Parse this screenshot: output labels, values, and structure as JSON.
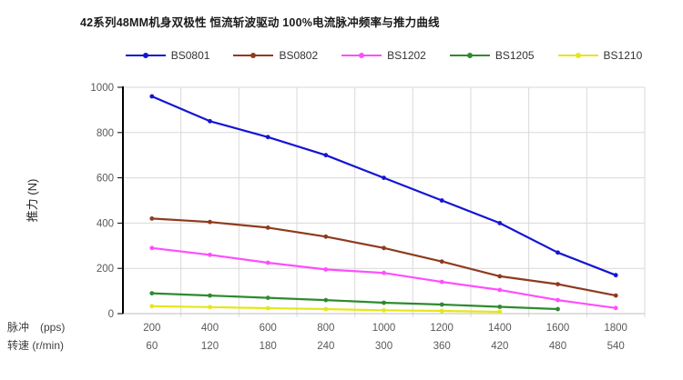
{
  "chart_data": {
    "type": "line",
    "title": "42系列48MM机身双极性 恒流斩波驱动 100%电流脉冲频率与推力曲线",
    "ylabel": "推力  (N)",
    "ylim": [
      0,
      1000
    ],
    "yticks": [
      0,
      200,
      400,
      600,
      800,
      1000
    ],
    "grid": true,
    "legend_position": "top",
    "x_rows": [
      {
        "label": "脉冲　(pps)",
        "ticks": [
          "200",
          "400",
          "600",
          "800",
          "1000",
          "1200",
          "1400",
          "1600",
          "1800"
        ]
      },
      {
        "label": "转速 (r/min)",
        "ticks": [
          "60",
          "120",
          "180",
          "240",
          "300",
          "360",
          "420",
          "480",
          "540"
        ]
      }
    ],
    "series": [
      {
        "name": "BS0801",
        "color": "#1414D4",
        "values": [
          960,
          850,
          780,
          700,
          600,
          500,
          400,
          270,
          170
        ]
      },
      {
        "name": "BS0802",
        "color": "#8E3B1E",
        "values": [
          420,
          405,
          380,
          340,
          290,
          230,
          165,
          130,
          80
        ]
      },
      {
        "name": "BS1202",
        "color": "#FF4DFF",
        "values": [
          290,
          260,
          225,
          195,
          180,
          140,
          105,
          60,
          25
        ]
      },
      {
        "name": "BS1205",
        "color": "#2E8B2E",
        "values": [
          90,
          80,
          70,
          60,
          48,
          40,
          30,
          20
        ]
      },
      {
        "name": "BS1210",
        "color": "#E6E61A",
        "values": [
          33,
          29,
          24,
          20,
          15,
          12,
          8
        ]
      }
    ],
    "grid_color": "#D9D9D9",
    "axis_color": "#000000"
  }
}
